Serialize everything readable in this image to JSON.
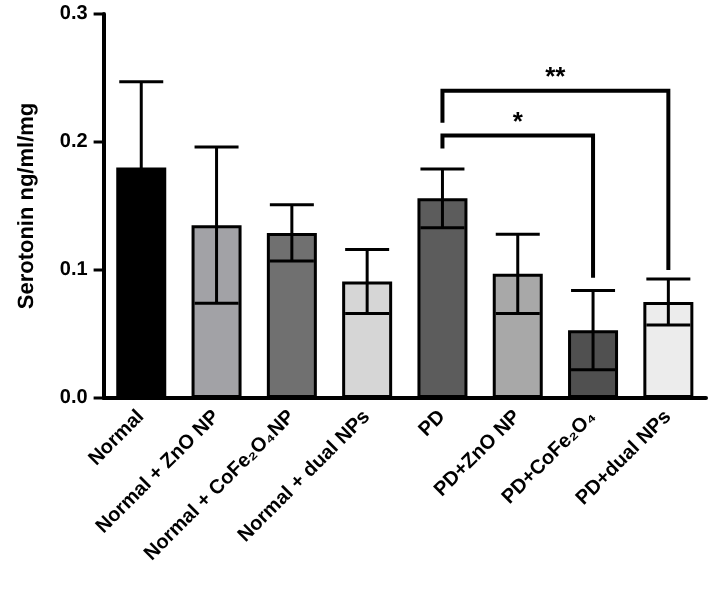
{
  "chart_data": {
    "type": "bar",
    "ylabel": "Serotonin ng/ml/mg",
    "categories": [
      "Normal",
      "Normal + ZnO NP",
      "Normal + CoFe₂O₄NP",
      "Normal + dual NPs",
      "PD",
      "PD+ZnO NP",
      "PD+CoFe₂O₄",
      "PD+dual NPs"
    ],
    "values": [
      0.18,
      0.135,
      0.129,
      0.091,
      0.156,
      0.097,
      0.053,
      0.075
    ],
    "errors": [
      0.067,
      0.061,
      0.022,
      0.025,
      0.023,
      0.031,
      0.031,
      0.018
    ],
    "colors": [
      "#000000",
      "#a2a2a6",
      "#707070",
      "#d6d6d6",
      "#5c5c5c",
      "#a8a8a8",
      "#505050",
      "#ececec"
    ],
    "ylim": [
      0,
      0.3
    ],
    "yticks": [
      {
        "value": 0,
        "label": "0.0"
      },
      {
        "value": 0.1,
        "label": "0.1"
      },
      {
        "value": 0.2,
        "label": "0.2"
      },
      {
        "value": 0.3,
        "label": "0.3"
      }
    ],
    "annotations": [
      "*",
      "**"
    ],
    "grid": false
  }
}
